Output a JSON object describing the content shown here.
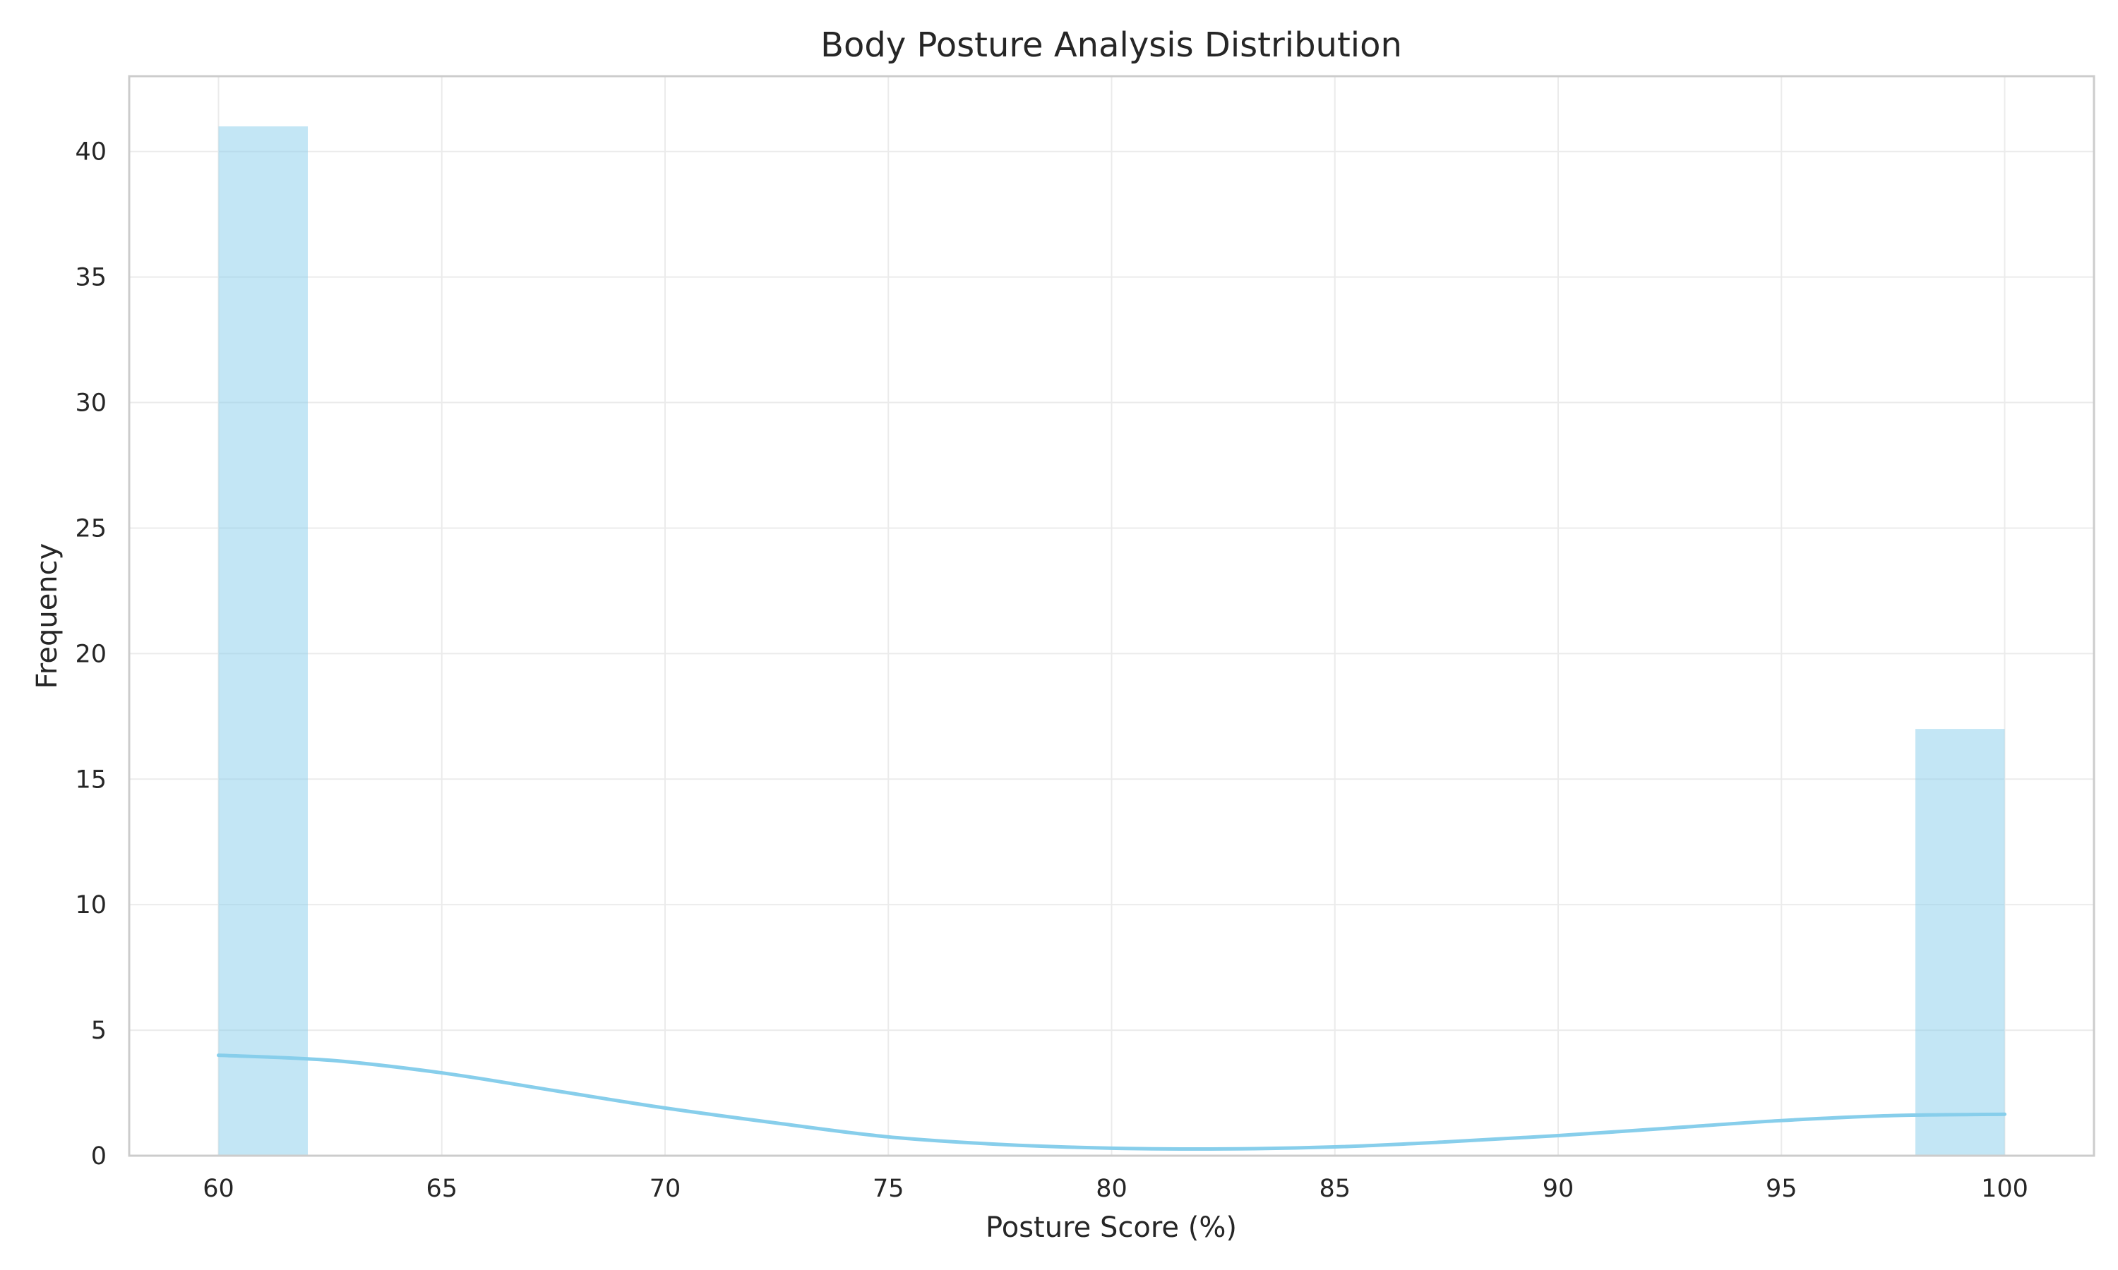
{
  "chart_data": {
    "type": "bar",
    "subtype": "histogram-with-kde",
    "title": "Body Posture Analysis Distribution",
    "xlabel": "Posture Score (%)",
    "ylabel": "Frequency",
    "xlim": [
      58,
      102
    ],
    "ylim": [
      0,
      43
    ],
    "x_ticks": [
      60,
      65,
      70,
      75,
      80,
      85,
      90,
      95,
      100
    ],
    "y_ticks": [
      0,
      5,
      10,
      15,
      20,
      25,
      30,
      35,
      40
    ],
    "grid": true,
    "bar_color": "#87CEEB",
    "bins": [
      {
        "start": 60,
        "end": 62,
        "count": 41
      },
      {
        "start": 98,
        "end": 100,
        "count": 17
      }
    ],
    "kde": {
      "color": "#87CEEB",
      "x": [
        60,
        62.5,
        65,
        67.5,
        70,
        72.5,
        75,
        77.5,
        80,
        82.5,
        85,
        87.5,
        90,
        92.5,
        95,
        97.5,
        100
      ],
      "y": [
        4.0,
        3.8,
        3.3,
        2.6,
        1.9,
        1.3,
        0.75,
        0.45,
        0.3,
        0.27,
        0.35,
        0.55,
        0.8,
        1.1,
        1.4,
        1.6,
        1.65
      ]
    }
  }
}
